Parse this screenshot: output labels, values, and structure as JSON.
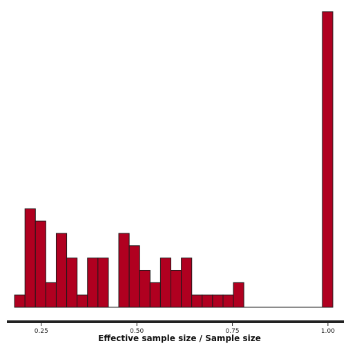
{
  "chart_data": {
    "type": "bar",
    "title": "",
    "xlabel": "Effective sample size / Sample size",
    "ylabel": "",
    "xlim": [
      0.16,
      1.02
    ],
    "ylim": [
      0,
      24.5
    ],
    "grid": false,
    "bin_width": 0.0273,
    "x_ticks": [
      {
        "value": 0.25,
        "label": "0.25"
      },
      {
        "value": 0.5,
        "label": "0.50"
      },
      {
        "value": 0.75,
        "label": "0.75"
      },
      {
        "value": 1.0,
        "label": "1.00"
      }
    ],
    "bins": [
      {
        "x0": 0.18,
        "count": 1
      },
      {
        "x0": 0.2073,
        "count": 8
      },
      {
        "x0": 0.2345,
        "count": 7
      },
      {
        "x0": 0.2618,
        "count": 2
      },
      {
        "x0": 0.2891,
        "count": 6
      },
      {
        "x0": 0.3164,
        "count": 4
      },
      {
        "x0": 0.3436,
        "count": 1
      },
      {
        "x0": 0.3709,
        "count": 4
      },
      {
        "x0": 0.3982,
        "count": 4
      },
      {
        "x0": 0.4255,
        "count": 0
      },
      {
        "x0": 0.4527,
        "count": 6
      },
      {
        "x0": 0.48,
        "count": 5
      },
      {
        "x0": 0.5073,
        "count": 3
      },
      {
        "x0": 0.5345,
        "count": 2
      },
      {
        "x0": 0.5618,
        "count": 4
      },
      {
        "x0": 0.5891,
        "count": 3
      },
      {
        "x0": 0.6164,
        "count": 4
      },
      {
        "x0": 0.6436,
        "count": 1
      },
      {
        "x0": 0.6709,
        "count": 1
      },
      {
        "x0": 0.6982,
        "count": 1
      },
      {
        "x0": 0.7255,
        "count": 1
      },
      {
        "x0": 0.7527,
        "count": 2
      },
      {
        "x0": 0.9855,
        "count": 24
      }
    ],
    "colors": {
      "bar": "#b00020",
      "outline": "#1a1a1a"
    }
  }
}
